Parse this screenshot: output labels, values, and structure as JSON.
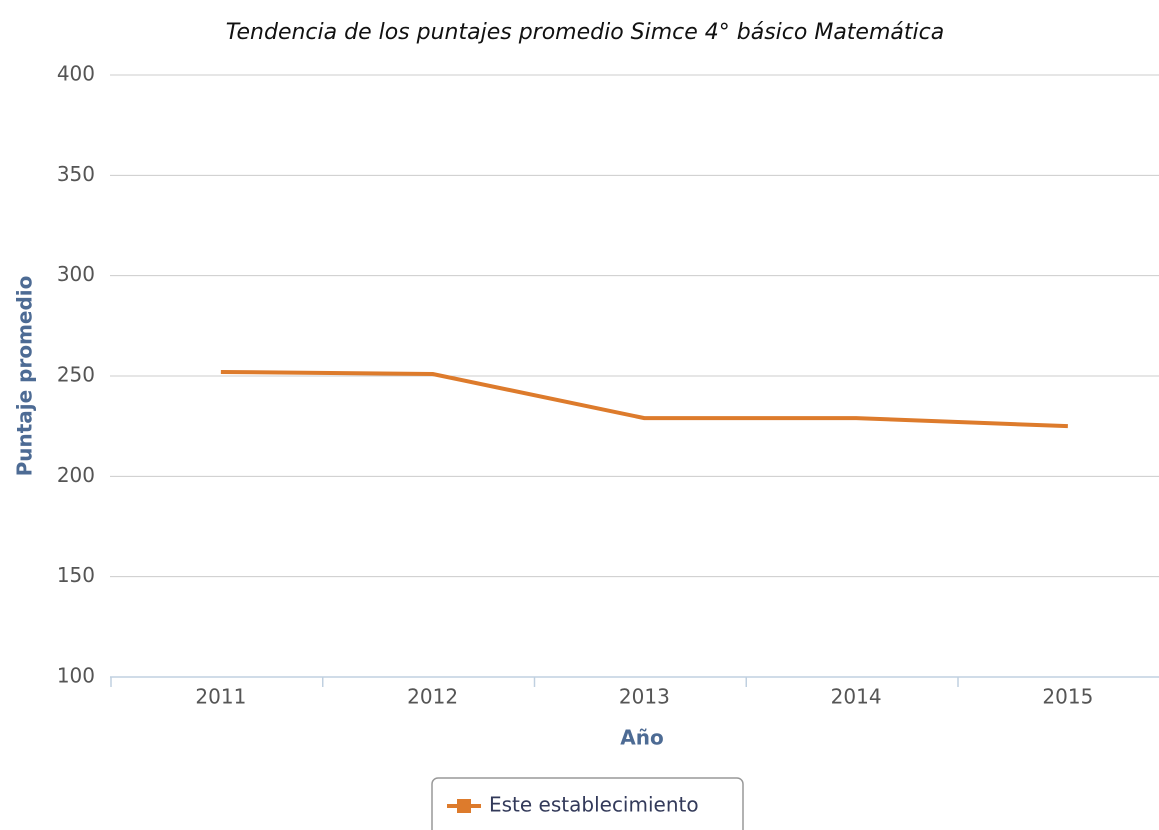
{
  "chart_data": {
    "type": "line",
    "title": "Tendencia de los puntajes promedio Simce 4° básico Matemática",
    "x_label": "Año",
    "y_label": "Puntaje promedio",
    "categories": [
      "2011",
      "2012",
      "2013",
      "2014",
      "2015"
    ],
    "series": [
      {
        "name": "Este establecimiento",
        "color": "#dd7b2c",
        "values": [
          252,
          251,
          229,
          229,
          225
        ]
      }
    ],
    "ylim": [
      100,
      400
    ],
    "yticks": [
      100,
      150,
      200,
      250,
      300,
      350,
      400
    ],
    "grid": true,
    "legend": "bottom"
  }
}
